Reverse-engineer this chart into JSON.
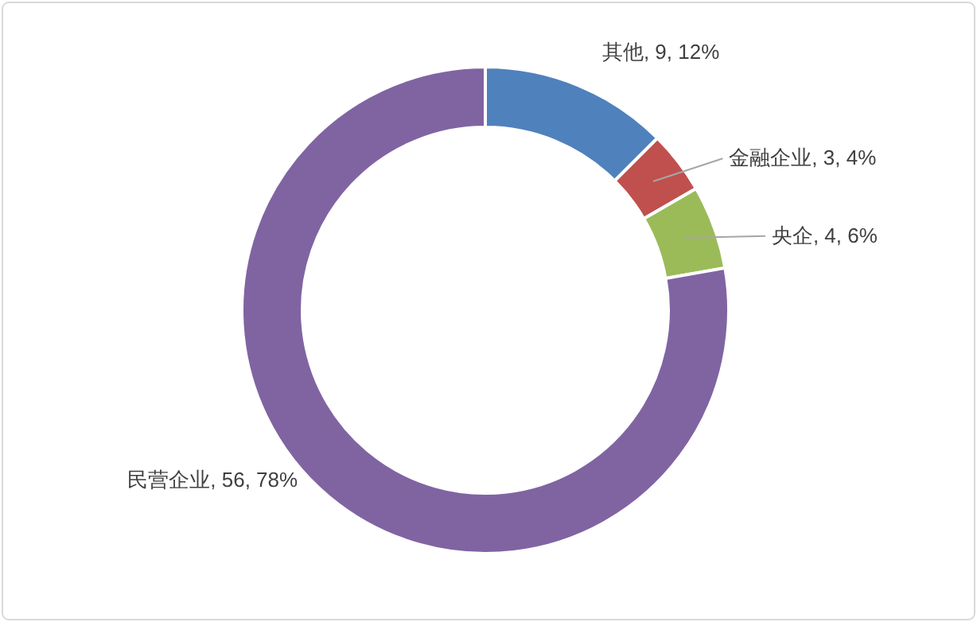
{
  "chart_data": {
    "type": "donut",
    "categories": [
      "其他",
      "金融企业",
      "央企",
      "民营企业"
    ],
    "values": [
      9,
      3,
      4,
      56
    ],
    "colors": [
      "#4f81bd",
      "#c0504d",
      "#9bbb59",
      "#8064a2"
    ],
    "value_labels": [
      "9, 12%",
      "3, 4%",
      "4, 6%",
      "56, 78%"
    ]
  }
}
